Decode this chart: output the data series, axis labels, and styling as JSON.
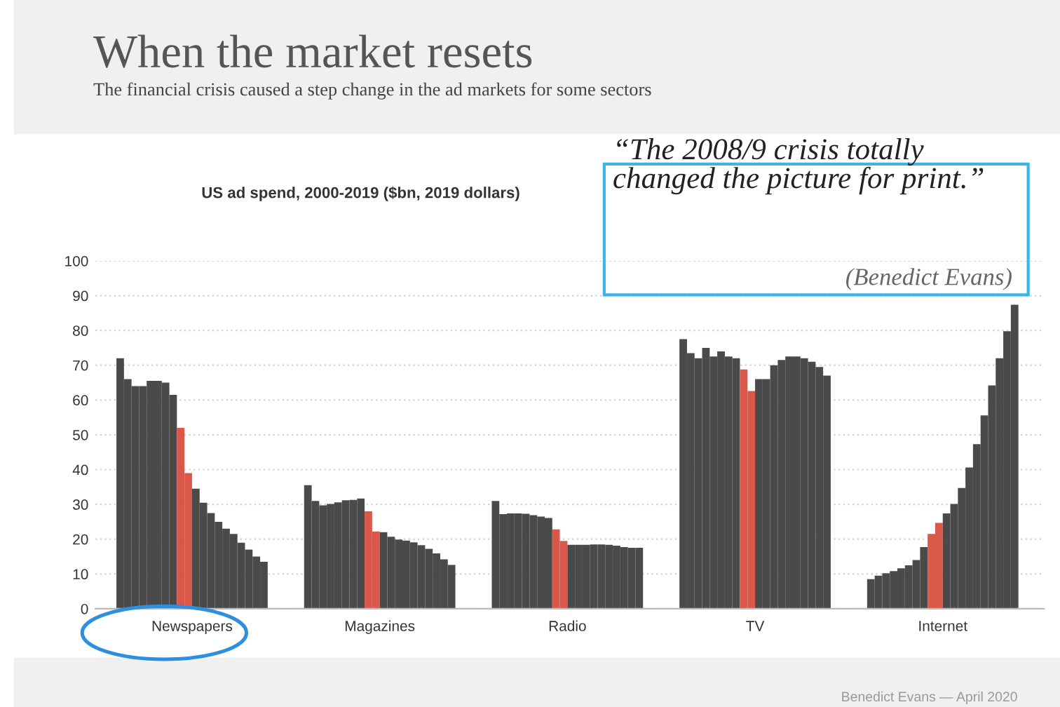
{
  "chart_data": {
    "type": "bar",
    "title": "When the market resets",
    "subtitle": "The financial crisis caused a step change in the ad markets for some sectors",
    "ylabel": "US ad spend, 2000-2019 ($bn, 2019 dollars)",
    "annotations": [
      "“The 2008/9 crisis totally\nchanged the picture for print.”",
      "(Benedict Evans)",
      "Benedict Evans — April 2020"
    ],
    "categories": [
      "Newspapers",
      "Magazines",
      "Radio",
      "TV",
      "Internet"
    ],
    "series": [
      {
        "color": "#4a4a4a",
        "values": [
          72,
          35.5,
          31,
          77.5,
          8.5
        ]
      },
      {
        "color": "#4a4a4a",
        "values": [
          66,
          31,
          27.2,
          73.5,
          9.5
        ]
      },
      {
        "color": "#4a4a4a",
        "values": [
          64,
          29.7,
          27.4,
          72,
          10.2
        ]
      },
      {
        "color": "#4a4a4a",
        "values": [
          64,
          30.1,
          27.4,
          75,
          10.8
        ]
      },
      {
        "color": "#4a4a4a",
        "values": [
          65.5,
          30.6,
          27.3,
          72.5,
          11.6
        ]
      },
      {
        "color": "#4a4a4a",
        "values": [
          65.5,
          31.2,
          26.9,
          74,
          12.5
        ]
      },
      {
        "color": "#4a4a4a",
        "values": [
          65,
          31.3,
          26.5,
          72.5,
          14
        ]
      },
      {
        "color": "#4a4a4a",
        "values": [
          61.5,
          31.7,
          26.1,
          72,
          17.7
        ]
      },
      {
        "color": "#d9584a",
        "values": [
          52,
          28,
          22.8,
          68.8,
          21.5
        ]
      },
      {
        "color": "#d9584a",
        "values": [
          39,
          22.2,
          19.5,
          62.6,
          24.7
        ]
      },
      {
        "color": "#4a4a4a",
        "values": [
          34.5,
          22,
          18.4,
          66,
          27.4
        ]
      },
      {
        "color": "#4a4a4a",
        "values": [
          30.5,
          20.7,
          18.4,
          66,
          30.1
        ]
      },
      {
        "color": "#4a4a4a",
        "values": [
          27.5,
          19.9,
          18.4,
          70,
          34.7
        ]
      },
      {
        "color": "#4a4a4a",
        "values": [
          25,
          19.6,
          18.5,
          71.5,
          40.6
        ]
      },
      {
        "color": "#4a4a4a",
        "values": [
          23,
          19.1,
          18.5,
          72.5,
          47.3
        ]
      },
      {
        "color": "#4a4a4a",
        "values": [
          21.5,
          18.3,
          18.4,
          72.5,
          55.6
        ]
      },
      {
        "color": "#4a4a4a",
        "values": [
          19,
          17.2,
          18.1,
          72,
          64.2
        ]
      },
      {
        "color": "#4a4a4a",
        "values": [
          17,
          15.9,
          17.7,
          71,
          72
        ]
      },
      {
        "color": "#4a4a4a",
        "values": [
          15,
          14.2,
          17.5,
          69.5,
          79.8
        ]
      },
      {
        "color": "#4a4a4a",
        "values": [
          13.5,
          12.6,
          17.5,
          67,
          87.4
        ]
      }
    ],
    "ylim": [
      0,
      100
    ],
    "yticks": [
      0,
      10,
      20,
      30,
      40,
      50,
      60,
      70,
      80,
      90,
      100
    ],
    "grid": "y",
    "legend": false
  }
}
